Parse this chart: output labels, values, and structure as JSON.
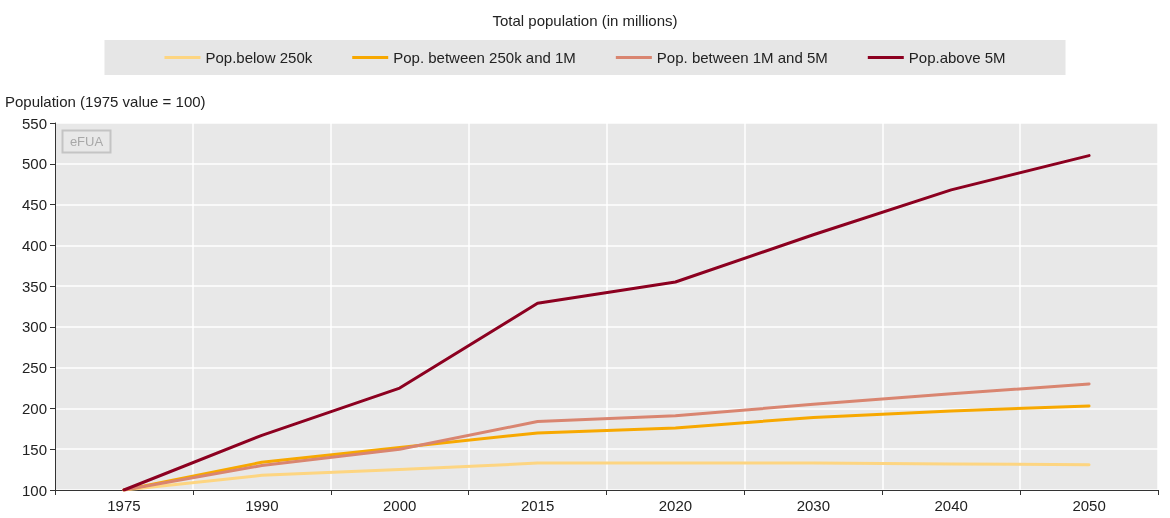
{
  "chart_data": {
    "type": "line",
    "title": "Total population (in millions)",
    "ylabel": "Population (1975 value = 100)",
    "annotations": [
      "eFUA"
    ],
    "categories": [
      "1975",
      "1990",
      "2000",
      "2015",
      "2020",
      "2030",
      "2040",
      "2050"
    ],
    "series": [
      {
        "name": "Pop.below 250k",
        "color": "#fdd581",
        "values": [
          100,
          118,
          125,
          133,
          133,
          133,
          132,
          131
        ]
      },
      {
        "name": "Pop. between 250k and 1M",
        "color": "#f7a800",
        "values": [
          100,
          134,
          152,
          170,
          176,
          189,
          197,
          203
        ]
      },
      {
        "name": "Pop. between 1M and 5M",
        "color": "#d98570",
        "values": [
          100,
          130,
          150,
          184,
          191,
          205,
          218,
          230
        ]
      },
      {
        "name": "Pop.above 5M",
        "color": "#8c0020",
        "values": [
          100,
          167,
          225,
          329,
          355,
          413,
          468,
          510
        ]
      }
    ],
    "ylim": [
      100,
      550
    ],
    "yticks": [
      100,
      150,
      200,
      250,
      300,
      350,
      400,
      450,
      500,
      550
    ],
    "grid": true,
    "legend": "top",
    "marker": "none",
    "line_style": "solid"
  }
}
